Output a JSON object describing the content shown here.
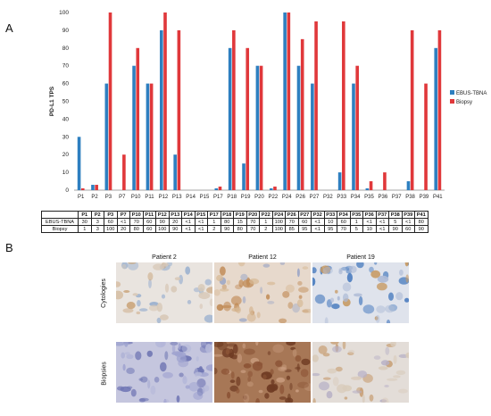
{
  "panel_a_label": "A",
  "panel_b_label": "B",
  "chart_data": {
    "type": "bar",
    "ylabel": "PD-L1 TPS",
    "xlabel": "",
    "ylim": [
      0,
      100
    ],
    "yticks": [
      0,
      10,
      20,
      30,
      40,
      50,
      60,
      70,
      80,
      90,
      100
    ],
    "grid": false,
    "legend_position": "right",
    "categories": [
      "P1",
      "P2",
      "P3",
      "P7",
      "P10",
      "P11",
      "P12",
      "P13",
      "P14",
      "P15",
      "P17",
      "P18",
      "P19",
      "P20",
      "P22",
      "P24",
      "P26",
      "P27",
      "P32",
      "P33",
      "P34",
      "P35",
      "P36",
      "P37",
      "P38",
      "P39",
      "P41"
    ],
    "series": [
      {
        "name": "EBUS-TBNA",
        "color": "#2e7fc0",
        "values": [
          30,
          3,
          60,
          0,
          70,
          60,
          90,
          20,
          0,
          0,
          1,
          80,
          15,
          70,
          1,
          100,
          70,
          60,
          0,
          10,
          60,
          1,
          0,
          0,
          5,
          0,
          80
        ]
      },
      {
        "name": "Biopsy",
        "color": "#e0383b",
        "values": [
          1,
          3,
          100,
          20,
          80,
          60,
          100,
          90,
          0,
          0,
          2,
          90,
          80,
          70,
          2,
          100,
          85,
          95,
          0,
          95,
          70,
          5,
          10,
          0,
          90,
          60,
          90
        ]
      }
    ]
  },
  "table": {
    "header": [
      "",
      "P1",
      "P2",
      "P3",
      "P7",
      "P10",
      "P11",
      "P12",
      "P13",
      "P14",
      "P15",
      "P17",
      "P18",
      "P19",
      "P20",
      "P22",
      "P24",
      "P26",
      "P27",
      "P32",
      "P33",
      "P34",
      "P35",
      "P36",
      "P37",
      "P38",
      "P39",
      "P41"
    ],
    "rows": [
      {
        "label": "EBUS-TBNA",
        "values": [
          "30",
          "3",
          "60",
          "<1",
          "70",
          "60",
          "90",
          "20",
          "<1",
          "<1",
          "1",
          "80",
          "15",
          "70",
          "1",
          "100",
          "70",
          "60",
          "<1",
          "10",
          "60",
          "1",
          "<1",
          "<1",
          "5",
          "<1",
          "80"
        ]
      },
      {
        "label": "Biopsy",
        "values": [
          "1",
          "3",
          "100",
          "20",
          "80",
          "60",
          "100",
          "90",
          "<1",
          "<1",
          "2",
          "90",
          "80",
          "70",
          "2",
          "100",
          "85",
          "95",
          "<1",
          "95",
          "70",
          "5",
          "10",
          "<1",
          "90",
          "60",
          "90"
        ]
      }
    ]
  },
  "micrographs": {
    "columns": [
      "Patient 2",
      "Patient 12",
      "Patient 19"
    ],
    "rows": [
      "Cytologies",
      "Biopsies"
    ]
  }
}
